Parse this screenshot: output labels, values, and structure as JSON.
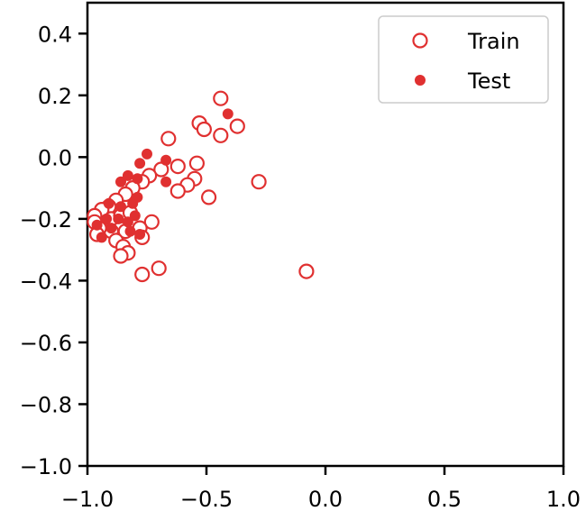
{
  "chart_data": {
    "type": "scatter",
    "title": "",
    "xlabel": "",
    "ylabel": "",
    "xlim": [
      -1.0,
      1.0
    ],
    "ylim": [
      -1.0,
      0.5
    ],
    "xticks": [
      -1.0,
      -0.5,
      0.0,
      0.5,
      1.0
    ],
    "yticks": [
      -1.0,
      -0.8,
      -0.6,
      -0.4,
      -0.2,
      0.0,
      0.2,
      0.4
    ],
    "xtick_labels": [
      "−1.0",
      "−0.5",
      "0.0",
      "0.5",
      "1.0"
    ],
    "ytick_labels": [
      "−1.0",
      "−0.8",
      "−0.6",
      "−0.4",
      "−0.2",
      "0.0",
      "0.2",
      "0.4"
    ],
    "grid": false,
    "legend_position": "top-right",
    "series": [
      {
        "name": "Train",
        "marker": "hollow-circle",
        "color": "#e03030",
        "points": [
          [
            -0.44,
            0.19
          ],
          [
            -0.53,
            0.11
          ],
          [
            -0.51,
            0.09
          ],
          [
            -0.44,
            0.07
          ],
          [
            -0.37,
            0.1
          ],
          [
            -0.66,
            0.06
          ],
          [
            -0.54,
            -0.02
          ],
          [
            -0.62,
            -0.03
          ],
          [
            -0.69,
            -0.04
          ],
          [
            -0.55,
            -0.07
          ],
          [
            -0.58,
            -0.09
          ],
          [
            -0.62,
            -0.11
          ],
          [
            -0.49,
            -0.13
          ],
          [
            -0.28,
            -0.08
          ],
          [
            -0.74,
            -0.06
          ],
          [
            -0.77,
            -0.08
          ],
          [
            -0.81,
            -0.1
          ],
          [
            -0.84,
            -0.12
          ],
          [
            -0.88,
            -0.14
          ],
          [
            -0.91,
            -0.16
          ],
          [
            -0.94,
            -0.17
          ],
          [
            -0.97,
            -0.19
          ],
          [
            -0.93,
            -0.22
          ],
          [
            -0.9,
            -0.2
          ],
          [
            -0.86,
            -0.19
          ],
          [
            -0.82,
            -0.18
          ],
          [
            -0.73,
            -0.21
          ],
          [
            -0.78,
            -0.23
          ],
          [
            -0.84,
            -0.24
          ],
          [
            -0.9,
            -0.24
          ],
          [
            -0.95,
            -0.23
          ],
          [
            -0.97,
            -0.21
          ],
          [
            -0.96,
            -0.25
          ],
          [
            -0.88,
            -0.27
          ],
          [
            -0.77,
            -0.26
          ],
          [
            -0.85,
            -0.29
          ],
          [
            -0.83,
            -0.31
          ],
          [
            -0.86,
            -0.32
          ],
          [
            -0.7,
            -0.36
          ],
          [
            -0.77,
            -0.38
          ],
          [
            -0.08,
            -0.37
          ]
        ]
      },
      {
        "name": "Test",
        "marker": "filled-circle",
        "color": "#e03030",
        "points": [
          [
            -0.41,
            0.14
          ],
          [
            -0.75,
            0.01
          ],
          [
            -0.67,
            -0.01
          ],
          [
            -0.78,
            -0.02
          ],
          [
            -0.67,
            -0.08
          ],
          [
            -0.86,
            -0.08
          ],
          [
            -0.83,
            -0.06
          ],
          [
            -0.79,
            -0.07
          ],
          [
            -0.79,
            -0.13
          ],
          [
            -0.81,
            -0.15
          ],
          [
            -0.91,
            -0.15
          ],
          [
            -0.86,
            -0.16
          ],
          [
            -0.8,
            -0.19
          ],
          [
            -0.92,
            -0.2
          ],
          [
            -0.87,
            -0.2
          ],
          [
            -0.83,
            -0.21
          ],
          [
            -0.96,
            -0.22
          ],
          [
            -0.9,
            -0.23
          ],
          [
            -0.82,
            -0.24
          ],
          [
            -0.78,
            -0.25
          ],
          [
            -0.94,
            -0.26
          ]
        ]
      }
    ]
  }
}
